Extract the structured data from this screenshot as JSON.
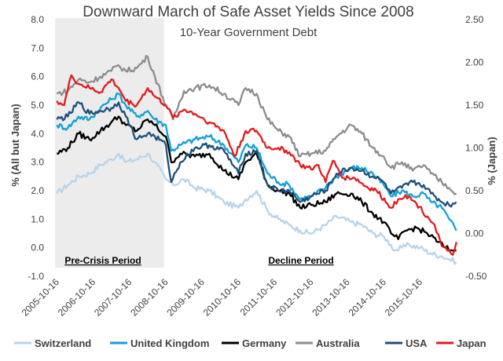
{
  "chart_data": {
    "type": "line",
    "title": "Downward March of Safe Asset Yields Since 2008",
    "subtitle": "10-Year Government Debt",
    "ylabel_left": "% (All but Japan)",
    "ylabel_right": "% (Japan)",
    "yticks_left": [
      "8.0",
      "7.0",
      "6.0",
      "5.0",
      "4.0",
      "3.0",
      "2.0",
      "1.0",
      "0.0",
      "-1.0"
    ],
    "yticks_right": [
      "2.50",
      "2.00",
      "1.50",
      "1.00",
      "0.50",
      "0.00",
      "-0.50"
    ],
    "ylim_left": [
      -1.0,
      8.0
    ],
    "ylim_right": [
      -0.5,
      2.5
    ],
    "x": [
      "2005-10-16",
      "2006-10-16",
      "2007-10-16",
      "2008-10-16",
      "2009-10-16",
      "2010-10-16",
      "2011-10-16",
      "2012-10-16",
      "2013-10-16",
      "2014-10-16",
      "2015-10-16"
    ],
    "xlim": [
      2005.75,
      2016.85
    ],
    "shaded_region": {
      "label": "Pre-Crisis Period",
      "start": 2005.75,
      "end": 2008.75
    },
    "annotations": [
      {
        "label": "Decline Period"
      }
    ],
    "series": [
      {
        "name": "Switzerland",
        "axis": "left",
        "color": "#b8d4ea",
        "x": [
          2005.8,
          2006.1,
          2006.4,
          2006.7,
          2007.0,
          2007.3,
          2007.5,
          2007.7,
          2008.0,
          2008.3,
          2008.5,
          2008.8,
          2009.0,
          2009.3,
          2009.6,
          2010.0,
          2010.4,
          2010.8,
          2011.0,
          2011.3,
          2011.6,
          2011.9,
          2012.2,
          2012.5,
          2012.8,
          2013.2,
          2013.5,
          2013.9,
          2014.2,
          2014.5,
          2014.8,
          2015.0,
          2015.1,
          2015.3,
          2015.5,
          2015.8,
          2016.1,
          2016.4,
          2016.6,
          2016.8
        ],
        "y": [
          1.9,
          2.2,
          2.5,
          2.6,
          2.9,
          3.1,
          3.3,
          3.0,
          3.1,
          3.3,
          3.0,
          2.4,
          2.2,
          2.4,
          2.1,
          2.0,
          1.6,
          1.4,
          1.7,
          2.0,
          1.3,
          1.0,
          0.8,
          0.6,
          0.5,
          0.8,
          1.1,
          0.9,
          0.8,
          0.5,
          0.4,
          0.1,
          -0.1,
          0.0,
          0.1,
          0.0,
          -0.2,
          -0.3,
          -0.4,
          -0.5
        ]
      },
      {
        "name": "United Kingdom",
        "axis": "left",
        "color": "#12a1d6",
        "x": [
          2005.8,
          2006.1,
          2006.4,
          2006.7,
          2007.0,
          2007.3,
          2007.5,
          2007.7,
          2008.0,
          2008.3,
          2008.5,
          2008.8,
          2008.95,
          2009.2,
          2009.6,
          2010.0,
          2010.4,
          2010.8,
          2011.0,
          2011.3,
          2011.6,
          2011.9,
          2012.2,
          2012.5,
          2012.8,
          2013.2,
          2013.5,
          2013.9,
          2014.2,
          2014.5,
          2014.8,
          2015.0,
          2015.3,
          2015.6,
          2015.9,
          2016.1,
          2016.4,
          2016.6,
          2016.8
        ],
        "y": [
          4.3,
          4.2,
          4.6,
          4.5,
          4.9,
          5.2,
          5.4,
          5.0,
          4.6,
          4.8,
          4.5,
          4.3,
          3.4,
          3.6,
          3.8,
          3.9,
          3.6,
          3.0,
          3.6,
          3.5,
          2.6,
          2.3,
          2.2,
          1.7,
          1.8,
          2.1,
          2.5,
          2.8,
          2.8,
          2.6,
          2.2,
          1.8,
          2.0,
          1.8,
          1.9,
          1.6,
          1.4,
          1.0,
          0.6
        ]
      },
      {
        "name": "Germany",
        "axis": "left",
        "color": "#000000",
        "x": [
          2005.8,
          2006.1,
          2006.4,
          2006.7,
          2007.0,
          2007.3,
          2007.5,
          2007.7,
          2008.0,
          2008.3,
          2008.5,
          2008.8,
          2008.95,
          2009.2,
          2009.6,
          2010.0,
          2010.4,
          2010.8,
          2011.0,
          2011.3,
          2011.6,
          2011.9,
          2012.2,
          2012.5,
          2012.8,
          2013.2,
          2013.5,
          2013.9,
          2014.2,
          2014.5,
          2014.8,
          2015.0,
          2015.2,
          2015.4,
          2015.7,
          2016.0,
          2016.3,
          2016.5,
          2016.7,
          2016.8
        ],
        "y": [
          3.3,
          3.5,
          4.0,
          3.8,
          4.1,
          4.4,
          4.6,
          4.3,
          4.1,
          4.5,
          4.3,
          3.9,
          3.0,
          3.3,
          3.2,
          3.3,
          2.7,
          2.4,
          3.0,
          3.3,
          2.2,
          2.0,
          1.9,
          1.4,
          1.5,
          1.6,
          1.9,
          1.9,
          1.6,
          1.2,
          0.9,
          0.5,
          0.3,
          0.6,
          0.7,
          0.5,
          0.2,
          0.0,
          -0.1,
          -0.1
        ]
      },
      {
        "name": "Australia",
        "axis": "left",
        "color": "#8c8c8c",
        "x": [
          2005.8,
          2006.1,
          2006.4,
          2006.7,
          2007.0,
          2007.3,
          2007.5,
          2007.7,
          2008.0,
          2008.3,
          2008.5,
          2008.8,
          2009.0,
          2009.3,
          2009.6,
          2010.0,
          2010.4,
          2010.8,
          2011.0,
          2011.3,
          2011.6,
          2011.9,
          2012.2,
          2012.5,
          2012.8,
          2013.2,
          2013.5,
          2013.9,
          2014.2,
          2014.5,
          2014.8,
          2015.0,
          2015.3,
          2015.6,
          2015.9,
          2016.1,
          2016.4,
          2016.6,
          2016.8
        ],
        "y": [
          5.4,
          5.5,
          5.9,
          5.8,
          6.0,
          6.2,
          6.4,
          6.2,
          6.3,
          6.7,
          6.0,
          5.0,
          4.5,
          5.5,
          5.6,
          5.7,
          5.4,
          5.0,
          5.6,
          5.4,
          4.5,
          4.1,
          3.9,
          3.2,
          3.3,
          3.4,
          3.9,
          4.3,
          4.0,
          3.5,
          3.2,
          2.8,
          3.0,
          2.7,
          2.9,
          2.6,
          2.3,
          2.1,
          1.9
        ]
      },
      {
        "name": "USA",
        "axis": "left",
        "color": "#1f4e79",
        "x": [
          2005.8,
          2006.1,
          2006.4,
          2006.7,
          2007.0,
          2007.3,
          2007.5,
          2007.7,
          2008.0,
          2008.3,
          2008.5,
          2008.8,
          2008.95,
          2009.2,
          2009.6,
          2010.0,
          2010.4,
          2010.8,
          2011.0,
          2011.3,
          2011.6,
          2011.9,
          2012.2,
          2012.5,
          2012.8,
          2013.2,
          2013.5,
          2013.9,
          2014.2,
          2014.5,
          2014.8,
          2015.0,
          2015.3,
          2015.6,
          2015.9,
          2016.1,
          2016.4,
          2016.6,
          2016.8
        ],
        "y": [
          4.5,
          4.6,
          5.1,
          4.7,
          4.8,
          4.9,
          5.1,
          4.6,
          3.8,
          4.0,
          3.9,
          3.6,
          2.3,
          3.0,
          3.5,
          3.6,
          3.4,
          2.6,
          3.3,
          3.4,
          2.2,
          2.0,
          2.0,
          1.6,
          1.8,
          2.0,
          2.6,
          2.8,
          2.7,
          2.5,
          2.3,
          1.9,
          2.1,
          2.3,
          2.2,
          1.9,
          1.6,
          1.5,
          1.6
        ]
      },
      {
        "name": "Japan",
        "axis": "right",
        "color": "#e31a1c",
        "x": [
          2005.8,
          2006.0,
          2006.2,
          2006.4,
          2006.7,
          2007.0,
          2007.3,
          2007.5,
          2007.7,
          2008.0,
          2008.3,
          2008.5,
          2008.8,
          2009.0,
          2009.3,
          2009.6,
          2010.0,
          2010.4,
          2010.7,
          2011.0,
          2011.3,
          2011.6,
          2011.9,
          2012.2,
          2012.5,
          2012.8,
          2013.0,
          2013.2,
          2013.4,
          2013.7,
          2014.0,
          2014.3,
          2014.6,
          2014.9,
          2015.0,
          2015.2,
          2015.4,
          2015.7,
          2016.0,
          2016.2,
          2016.4,
          2016.55,
          2016.7,
          2016.8
        ],
        "y": [
          1.55,
          1.5,
          1.85,
          1.75,
          1.7,
          1.65,
          1.8,
          1.7,
          1.55,
          1.5,
          1.7,
          1.6,
          1.5,
          1.35,
          1.45,
          1.4,
          1.3,
          1.2,
          0.9,
          1.2,
          1.2,
          1.0,
          1.0,
          0.95,
          0.8,
          0.75,
          0.8,
          0.6,
          0.85,
          0.65,
          0.65,
          0.55,
          0.5,
          0.35,
          0.3,
          0.4,
          0.45,
          0.35,
          0.2,
          0.1,
          -0.15,
          -0.2,
          -0.25,
          -0.1
        ]
      }
    ]
  }
}
